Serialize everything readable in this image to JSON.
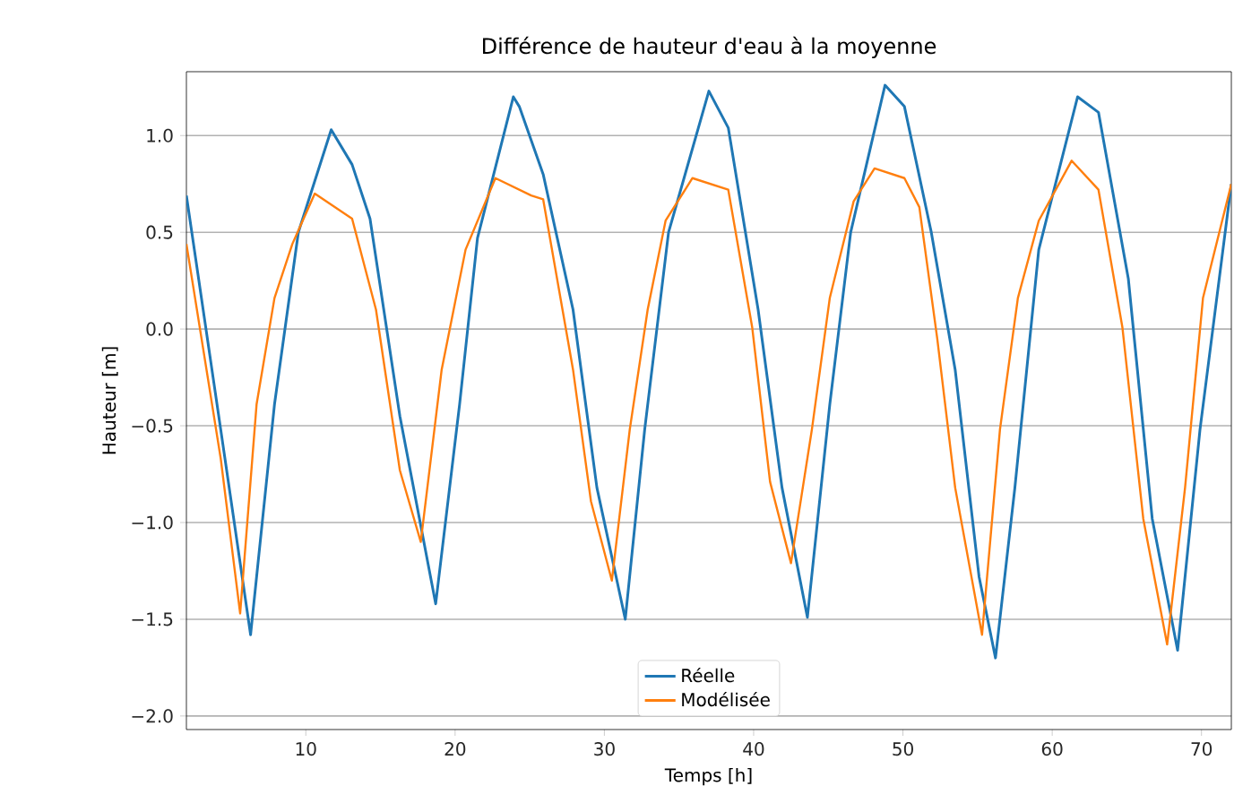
{
  "chart_data": {
    "type": "line",
    "title": "Différence de hauteur d'eau à la moyenne",
    "xlabel": "Temps [h]",
    "ylabel": "Hauteur [m]",
    "xlim": [
      2,
      72
    ],
    "ylim": [
      -2.07,
      1.33
    ],
    "xticks": [
      10,
      20,
      30,
      40,
      50,
      60,
      70
    ],
    "yticks": [
      {
        "value": -2,
        "label": "−2.0"
      },
      {
        "value": -1.5,
        "label": "−1.5"
      },
      {
        "value": -1,
        "label": "−1.0"
      },
      {
        "value": -0.5,
        "label": "−0.5"
      },
      {
        "value": 0,
        "label": "0.0"
      },
      {
        "value": 0.5,
        "label": "0.5"
      },
      {
        "value": 1,
        "label": "1.0"
      }
    ],
    "grid": "y",
    "legend": "bottom",
    "marker": "none",
    "line_style": "solid",
    "series": [
      {
        "name": "Réelle",
        "color": "#1f77b4",
        "x": [
          2,
          4.3,
          6.3,
          7.9,
          9.5,
          11.7,
          13.1,
          14.3,
          16.3,
          18.7,
          20.3,
          21.5,
          23.9,
          24.3,
          25.9,
          27.9,
          29.5,
          31.4,
          32.7,
          34.3,
          37,
          38.3,
          40.3,
          41.9,
          43.6,
          45.1,
          46.5,
          48.8,
          50.1,
          51.9,
          53.5,
          55.1,
          56.2,
          57.5,
          59.1,
          61.7,
          63.1,
          65.1,
          66.7,
          68.4,
          69.9,
          72
        ],
        "values": [
          0.69,
          -0.52,
          -1.58,
          -0.39,
          0.5,
          1.03,
          0.85,
          0.57,
          -0.45,
          -1.42,
          -0.39,
          0.47,
          1.2,
          1.15,
          0.8,
          0.1,
          -0.82,
          -1.5,
          -0.52,
          0.5,
          1.23,
          1.04,
          0.1,
          -0.82,
          -1.49,
          -0.39,
          0.5,
          1.26,
          1.15,
          0.5,
          -0.21,
          -1.28,
          -1.7,
          -0.82,
          0.41,
          1.2,
          1.12,
          0.26,
          -0.98,
          -1.66,
          -0.52,
          0.75
        ]
      },
      {
        "name": "Modélisée",
        "color": "#ff7f0e",
        "x": [
          2,
          4.3,
          5.6,
          6.7,
          7.9,
          9.1,
          10.6,
          13.1,
          14.7,
          16.3,
          17.7,
          19.1,
          20.7,
          22.7,
          25.1,
          25.9,
          27.9,
          29.1,
          30.5,
          31.7,
          32.9,
          34.1,
          35.9,
          38.3,
          39.9,
          41.1,
          42.5,
          43.9,
          45.1,
          46.7,
          48.1,
          50.1,
          51.1,
          52.3,
          53.5,
          55.3,
          56.5,
          57.7,
          59.1,
          61.3,
          63.1,
          64.7,
          66.1,
          67.7,
          68.9,
          70.1,
          72
        ],
        "values": [
          0.44,
          -0.67,
          -1.47,
          -0.39,
          0.16,
          0.44,
          0.7,
          0.57,
          0.1,
          -0.73,
          -1.1,
          -0.21,
          0.41,
          0.78,
          0.69,
          0.67,
          -0.21,
          -0.89,
          -1.3,
          -0.52,
          0.1,
          0.56,
          0.78,
          0.72,
          0.01,
          -0.79,
          -1.21,
          -0.52,
          0.16,
          0.66,
          0.83,
          0.78,
          0.63,
          -0.05,
          -0.82,
          -1.58,
          -0.52,
          0.16,
          0.56,
          0.87,
          0.72,
          0.01,
          -0.98,
          -1.63,
          -0.82,
          0.16,
          0.75
        ]
      }
    ]
  }
}
